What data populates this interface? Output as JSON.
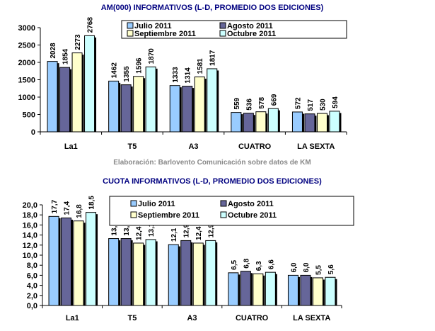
{
  "chart_data": [
    {
      "type": "bar",
      "title": "AM(000)  INFORMATIVOS  (L-D,  PROMEDIO  DOS  EDICIONES)",
      "caption": "Elaboración:  Barlovento  Comunicación  sobre  datos  de  KM",
      "categories": [
        "La1",
        "T5",
        "A3",
        "CUATRO",
        "LA  SEXTA"
      ],
      "ylim": [
        0,
        3000
      ],
      "yticks": [
        "0",
        "500",
        "1000",
        "1500",
        "2000",
        "2500",
        "3000"
      ],
      "ytick_values": [
        0,
        500,
        1000,
        1500,
        2000,
        2500,
        3000
      ],
      "grid": false,
      "legend_position": "top-right",
      "series": [
        {
          "name": "Julio  2011",
          "color": "#99ccff",
          "values": [
            2028,
            1462,
            1333,
            559,
            572
          ],
          "labels": [
            "2028",
            "1462",
            "1333",
            "559",
            "572"
          ]
        },
        {
          "name": "Agosto  2011",
          "color": "#666699",
          "values": [
            1854,
            1355,
            1314,
            536,
            517
          ],
          "labels": [
            "1854",
            "1355",
            "1314",
            "536",
            "517"
          ]
        },
        {
          "name": "Septiembre  2011",
          "color": "#ffffcc",
          "values": [
            2273,
            1596,
            1581,
            578,
            530
          ],
          "labels": [
            "2273",
            "1596",
            "1581",
            "578",
            "530"
          ]
        },
        {
          "name": "Octubre  2011",
          "color": "#ccffff",
          "values": [
            2768,
            1870,
            1817,
            669,
            594
          ],
          "labels": [
            "2768",
            "1870",
            "1817",
            "669",
            "594"
          ]
        }
      ]
    },
    {
      "type": "bar",
      "title": "CUOTA INFORMATIVOS (L-D, PROMEDIO DOS EDICIONES)",
      "categories": [
        "La1",
        "T5",
        "A3",
        "CUATRO",
        "LA SEXTA"
      ],
      "ylim": [
        0,
        20
      ],
      "yticks": [
        "0,0",
        "2,0",
        "4,0",
        "6,0",
        "8,0",
        "10,0",
        "12,0",
        "14,0",
        "16,0",
        "18,0",
        "20,0"
      ],
      "ytick_values": [
        0,
        2,
        4,
        6,
        8,
        10,
        12,
        14,
        16,
        18,
        20
      ],
      "grid": false,
      "legend_position": "top-right",
      "series": [
        {
          "name": "Julio  2011",
          "color": "#99ccff",
          "values": [
            17.7,
            13.3,
            12.1,
            6.5,
            6.0
          ],
          "labels": [
            "17,7",
            "13,3",
            "12,1",
            "6,5",
            "6,0"
          ]
        },
        {
          "name": "Agosto  2011",
          "color": "#666699",
          "values": [
            17.4,
            13.3,
            12.9,
            6.8,
            6.0
          ],
          "labels": [
            "17,4",
            "13,3",
            "12,9",
            "6,8",
            "6,0"
          ]
        },
        {
          "name": "Septiembre  2011",
          "color": "#ffffcc",
          "values": [
            16.8,
            12.4,
            12.4,
            6.3,
            5.5
          ],
          "labels": [
            "16,8",
            "12,4",
            "12,4",
            "6,3",
            "5,5"
          ]
        },
        {
          "name": "Octubre  2011",
          "color": "#ccffff",
          "values": [
            18.5,
            13.1,
            12.9,
            6.6,
            5.6
          ],
          "labels": [
            "18,5",
            "13,1",
            "12,9",
            "6,6",
            "5,6"
          ]
        }
      ]
    }
  ]
}
